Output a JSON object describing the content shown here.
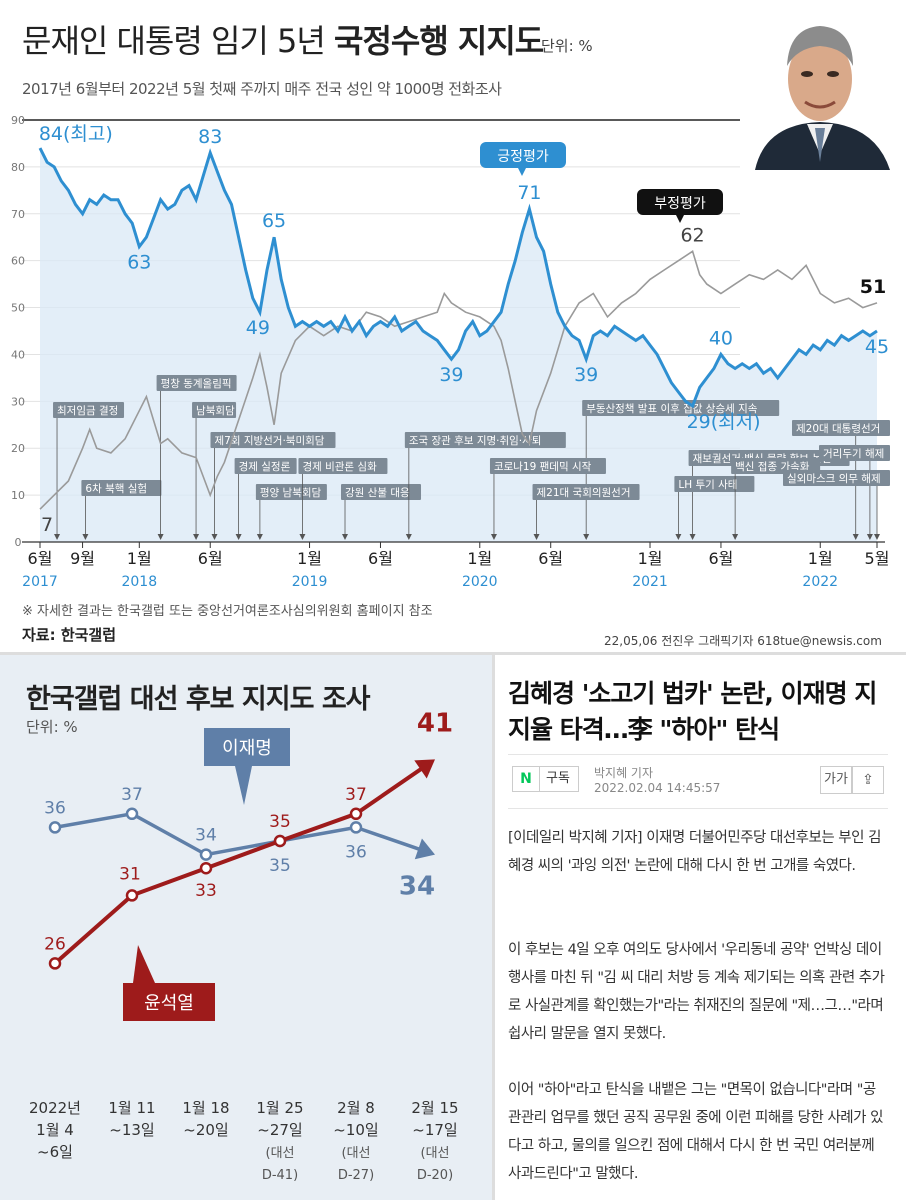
{
  "top": {
    "title_regular": "문재인 대통령 임기 5년",
    "title_bold": "국정수행 지지도",
    "unit": "단위: %",
    "subtitle": "2017년 6월부터 2022년 5월 첫째 주까지 매주 전국 성인 약 1000명 전화조사",
    "note": "※ 자세한 결과는 한국갤럽 또는 중앙선거여론조사심의위원회 홈페이지 참조",
    "source": "자료: 한국갤럽",
    "credit": "22,05,06 전진우 그래픽기자 618tue@newsis.com"
  },
  "bottom_left": {
    "title": "한국갤럽 대선 후보 지지도 조사",
    "unit": "단위: %"
  },
  "article": {
    "headline": "김혜경 '소고기 법카' 논란, 이재명 지지율 타격…李 \"하아\" 탄식",
    "badge": "N",
    "subscribe": "구독",
    "author": "박지혜 기자",
    "date": "2022.02.04 14:45:57",
    "font_btn": "가가",
    "share_btn": "⇪",
    "p1": "[이데일리 박지혜 기자] 이재명 더불어민주당 대선후보는 부인 김혜경 씨의 '과잉 의전' 논란에 대해 다시 한 번 고개를 숙였다.",
    "p2": "이 후보는 4일 오후 여의도 당사에서 '우리동네 공약' 언박싱 데이 행사를 마친 뒤 \"김 씨 대리 처방 등 계속 제기되는 의혹 관련 추가로 사실관계를 확인했는가\"라는 취재진의 질문에 \"제…그…\"라며 쉽사리 말문을 열지 못했다.",
    "p3": "이어 \"하아\"라고 탄식을 내뱉은 그는 \"면목이 없습니다\"라며 \"공관관리 업무를 했던 공직 공무원 중에 이런 피해를 당한 사례가 있다고 하고, 물의를 일으킨 점에 대해서 다시 한 번 국민 여러분께 사과드린다\"고 말했다."
  },
  "colors": {
    "positive": "#2e8fd1",
    "negative": "#9a9a9a",
    "lee": "#5f7fa8",
    "yoon": "#9e1b1b"
  },
  "chart_data": [
    {
      "type": "line",
      "title": "문재인 대통령 임기 5년 국정수행 지지도",
      "unit": "%",
      "ylim": [
        0,
        90
      ],
      "y_ticks": [
        0,
        10,
        20,
        30,
        40,
        50,
        60,
        70,
        80,
        90
      ],
      "grid": true,
      "x_ticks": [
        {
          "label": "6월",
          "year": "2017",
          "t": 0
        },
        {
          "label": "9월",
          "year": "",
          "t": 3
        },
        {
          "label": "1월",
          "year": "2018",
          "t": 7
        },
        {
          "label": "6월",
          "year": "",
          "t": 12
        },
        {
          "label": "1월",
          "year": "2019",
          "t": 19
        },
        {
          "label": "6월",
          "year": "",
          "t": 24
        },
        {
          "label": "1월",
          "year": "2020",
          "t": 31
        },
        {
          "label": "6월",
          "year": "",
          "t": 36
        },
        {
          "label": "1월",
          "year": "2021",
          "t": 43
        },
        {
          "label": "6월",
          "year": "",
          "t": 48
        },
        {
          "label": "1월",
          "year": "2022",
          "t": 55
        },
        {
          "label": "5월",
          "year": "",
          "t": 59
        }
      ],
      "series": [
        {
          "name": "긍정평가",
          "points": [
            [
              0,
              84
            ],
            [
              0.5,
              81
            ],
            [
              1,
              80
            ],
            [
              1.5,
              77
            ],
            [
              2,
              75
            ],
            [
              2.5,
              72
            ],
            [
              3,
              70
            ],
            [
              3.5,
              73
            ],
            [
              4,
              72
            ],
            [
              4.5,
              74
            ],
            [
              5,
              73
            ],
            [
              5.5,
              73
            ],
            [
              6,
              70
            ],
            [
              6.5,
              68
            ],
            [
              7,
              63
            ],
            [
              7.5,
              65
            ],
            [
              8,
              69
            ],
            [
              8.5,
              73
            ],
            [
              9,
              71
            ],
            [
              9.5,
              72
            ],
            [
              10,
              75
            ],
            [
              10.5,
              76
            ],
            [
              11,
              73
            ],
            [
              11.5,
              78
            ],
            [
              12,
              83
            ],
            [
              12.5,
              79
            ],
            [
              13,
              75
            ],
            [
              13.5,
              72
            ],
            [
              14,
              65
            ],
            [
              14.5,
              58
            ],
            [
              15,
              52
            ],
            [
              15.5,
              49
            ],
            [
              16,
              58
            ],
            [
              16.5,
              65
            ],
            [
              17,
              56
            ],
            [
              17.5,
              50
            ],
            [
              18,
              46
            ],
            [
              18.5,
              47
            ],
            [
              19,
              46
            ],
            [
              19.5,
              47
            ],
            [
              20,
              46
            ],
            [
              20.5,
              47
            ],
            [
              21,
              45
            ],
            [
              21.5,
              48
            ],
            [
              22,
              45
            ],
            [
              22.5,
              47
            ],
            [
              23,
              44
            ],
            [
              23.5,
              46
            ],
            [
              24,
              47
            ],
            [
              24.5,
              46
            ],
            [
              25,
              48
            ],
            [
              25.5,
              45
            ],
            [
              26,
              46
            ],
            [
              26.5,
              47
            ],
            [
              27,
              45
            ],
            [
              27.5,
              44
            ],
            [
              28,
              43
            ],
            [
              28.5,
              41
            ],
            [
              29,
              39
            ],
            [
              29.5,
              41
            ],
            [
              30,
              45
            ],
            [
              30.5,
              47
            ],
            [
              31,
              44
            ],
            [
              31.5,
              45
            ],
            [
              32,
              47
            ],
            [
              32.5,
              49
            ],
            [
              33,
              55
            ],
            [
              33.5,
              60
            ],
            [
              34,
              66
            ],
            [
              34.5,
              71
            ],
            [
              35,
              65
            ],
            [
              35.5,
              62
            ],
            [
              36,
              55
            ],
            [
              36.5,
              49
            ],
            [
              37,
              46
            ],
            [
              37.5,
              44
            ],
            [
              38,
              43
            ],
            [
              38.5,
              39
            ],
            [
              39,
              44
            ],
            [
              39.5,
              45
            ],
            [
              40,
              44
            ],
            [
              40.5,
              46
            ],
            [
              41,
              45
            ],
            [
              41.5,
              44
            ],
            [
              42,
              43
            ],
            [
              42.5,
              44
            ],
            [
              43,
              42
            ],
            [
              43.5,
              40
            ],
            [
              44,
              37
            ],
            [
              44.5,
              34
            ],
            [
              45,
              32
            ],
            [
              45.5,
              30
            ],
            [
              46,
              29
            ],
            [
              46.5,
              33
            ],
            [
              47,
              35
            ],
            [
              47.5,
              37
            ],
            [
              48,
              40
            ],
            [
              48.5,
              38
            ],
            [
              49,
              37
            ],
            [
              49.5,
              38
            ],
            [
              50,
              37
            ],
            [
              50.5,
              38
            ],
            [
              51,
              36
            ],
            [
              51.5,
              37
            ],
            [
              52,
              35
            ],
            [
              52.5,
              37
            ],
            [
              53,
              39
            ],
            [
              53.5,
              41
            ],
            [
              54,
              40
            ],
            [
              54.5,
              42
            ],
            [
              55,
              41
            ],
            [
              55.5,
              43
            ],
            [
              56,
              42
            ],
            [
              56.5,
              44
            ],
            [
              57,
              43
            ],
            [
              57.5,
              44
            ],
            [
              58,
              45
            ],
            [
              58.5,
              44
            ],
            [
              59,
              45
            ]
          ]
        },
        {
          "name": "부정평가",
          "points": [
            [
              0,
              7
            ],
            [
              1,
              10
            ],
            [
              2,
              13
            ],
            [
              3,
              20
            ],
            [
              3.5,
              24
            ],
            [
              4,
              20
            ],
            [
              5,
              19
            ],
            [
              6,
              22
            ],
            [
              7,
              28
            ],
            [
              7.5,
              31
            ],
            [
              8,
              26
            ],
            [
              8.5,
              21
            ],
            [
              9,
              22
            ],
            [
              10,
              19
            ],
            [
              11,
              18
            ],
            [
              12,
              10
            ],
            [
              12.5,
              14
            ],
            [
              13,
              17
            ],
            [
              14,
              26
            ],
            [
              15,
              35
            ],
            [
              15.5,
              40
            ],
            [
              16,
              33
            ],
            [
              16.5,
              25
            ],
            [
              17,
              36
            ],
            [
              18,
              43
            ],
            [
              19,
              46
            ],
            [
              20,
              44
            ],
            [
              21,
              46
            ],
            [
              22,
              45
            ],
            [
              23,
              49
            ],
            [
              24,
              48
            ],
            [
              25,
              46
            ],
            [
              26,
              47
            ],
            [
              27,
              48
            ],
            [
              28,
              49
            ],
            [
              28.5,
              53
            ],
            [
              29,
              51
            ],
            [
              30,
              49
            ],
            [
              31,
              48
            ],
            [
              32,
              46
            ],
            [
              32.5,
              43
            ],
            [
              33,
              37
            ],
            [
              33.5,
              30
            ],
            [
              34,
              23
            ],
            [
              34.5,
              21
            ],
            [
              35,
              28
            ],
            [
              36,
              36
            ],
            [
              37,
              46
            ],
            [
              38,
              51
            ],
            [
              39,
              53
            ],
            [
              40,
              48
            ],
            [
              41,
              51
            ],
            [
              42,
              53
            ],
            [
              43,
              56
            ],
            [
              44,
              58
            ],
            [
              45,
              60
            ],
            [
              46,
              62
            ],
            [
              46.5,
              57
            ],
            [
              47,
              55
            ],
            [
              48,
              53
            ],
            [
              49,
              55
            ],
            [
              50,
              57
            ],
            [
              51,
              56
            ],
            [
              52,
              58
            ],
            [
              53,
              56
            ],
            [
              54,
              59
            ],
            [
              55,
              53
            ],
            [
              56,
              51
            ],
            [
              57,
              52
            ],
            [
              58,
              50
            ],
            [
              59,
              51
            ]
          ]
        }
      ],
      "value_labels": [
        {
          "text": "84(최고)",
          "series": "긍정평가"
        },
        {
          "text": "83",
          "series": "긍정평가"
        },
        {
          "text": "63",
          "series": "긍정평가"
        },
        {
          "text": "65",
          "series": "긍정평가"
        },
        {
          "text": "49",
          "series": "긍정평가"
        },
        {
          "text": "71",
          "series": "긍정평가"
        },
        {
          "text": "39",
          "series": "긍정평가"
        },
        {
          "text": "39",
          "series": "긍정평가"
        },
        {
          "text": "40",
          "series": "긍정평가"
        },
        {
          "text": "29(최저)",
          "series": "긍정평가"
        },
        {
          "text": "45",
          "series": "긍정평가"
        },
        {
          "text": "62",
          "series": "부정평가"
        },
        {
          "text": "51",
          "series": "부정평가"
        },
        {
          "text": "7",
          "series": "부정평가"
        }
      ],
      "events": [
        {
          "text": "최저임금 결정",
          "t": 1.2
        },
        {
          "text": "6차 북핵 실험",
          "t": 3.2
        },
        {
          "text": "평창 동계올림픽",
          "t": 8.5
        },
        {
          "text": "남북회담",
          "t": 11
        },
        {
          "text": "제7회 지방선거·북미회담",
          "t": 12.3
        },
        {
          "text": "경제 실정론",
          "t": 14
        },
        {
          "text": "평양 남북회담",
          "t": 15.5
        },
        {
          "text": "경제 비관론 심화",
          "t": 18.5
        },
        {
          "text": "강원 산불 대응",
          "t": 21.5
        },
        {
          "text": "조국 장관 후보 지명·취임·사퇴",
          "t": 26
        },
        {
          "text": "부동산정책 발표 이후 집값 상승세 지속",
          "t": 38.5
        },
        {
          "text": "코로나19 팬데믹 시작",
          "t": 32
        },
        {
          "text": "제21대 국회의원선거",
          "t": 35
        },
        {
          "text": "재보궐선거·백신 물량 확보 논란",
          "t": 46
        },
        {
          "text": "LH 투기 사태",
          "t": 45
        },
        {
          "text": "백신 접종 가속화",
          "t": 49
        },
        {
          "text": "제20대 대통령선거",
          "t": 57.5
        },
        {
          "text": "거리두기 해제",
          "t": 58.5
        },
        {
          "text": "실외마스크 의무 해제",
          "t": 59
        }
      ]
    },
    {
      "type": "line",
      "title": "한국갤럽 대선 후보 지지도 조사",
      "unit": "%",
      "categories": [
        "2022년 1월 4 ~6일",
        "1월 11 ~13일",
        "1월 18 ~20일",
        "1월 25 ~27일 (대선 D-41)",
        "2월 8 ~10일 (대선 D-27)",
        "2월 15 ~17일 (대선 D-20)"
      ],
      "series": [
        {
          "name": "이재명",
          "values": [
            36,
            37,
            34,
            35,
            36,
            34
          ]
        },
        {
          "name": "윤석열",
          "values": [
            26,
            31,
            33,
            35,
            37,
            41
          ]
        }
      ],
      "ylim": [
        20,
        45
      ]
    }
  ]
}
